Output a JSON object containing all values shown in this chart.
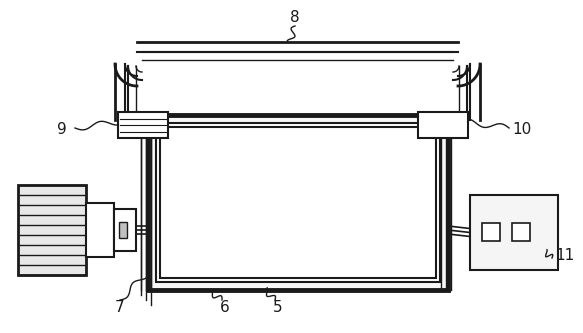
{
  "bg_color": "#ffffff",
  "lc": "#1a1a1a",
  "figsize": [
    5.83,
    3.33
  ],
  "dpi": 100
}
